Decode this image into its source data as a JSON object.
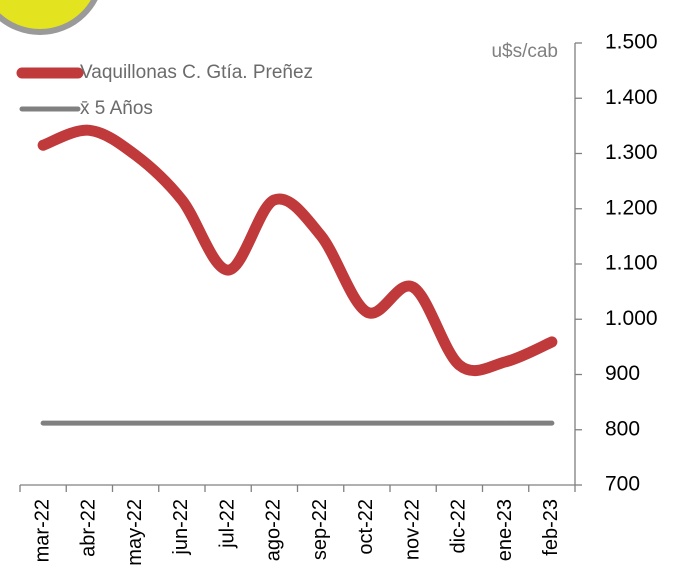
{
  "chart_data": {
    "type": "line",
    "y_axis_label": "u$s/cab",
    "categories": [
      "mar-22",
      "abr-22",
      "may-22",
      "jun-22",
      "jul-22",
      "ago-22",
      "sep-22",
      "oct-22",
      "nov-22",
      "dic-22",
      "ene-23",
      "feb-23"
    ],
    "series": [
      {
        "name": "Vaquillonas C. Gtía. Preñez",
        "color": "#c0393b",
        "values": [
          1315,
          1342,
          1297,
          1216,
          1089,
          1216,
          1152,
          1013,
          1058,
          917,
          923,
          959
        ]
      },
      {
        "name": "x̄ 5 Años",
        "color": "#808080",
        "values": [
          812,
          812,
          812,
          812,
          812,
          812,
          812,
          812,
          812,
          812,
          812,
          812
        ]
      }
    ],
    "ylim": [
      700,
      1500
    ],
    "yticks": [
      700,
      800,
      900,
      {
        "value": 1000,
        "label": "1.000"
      },
      {
        "value": 1100,
        "label": "1.100"
      },
      {
        "value": 1200,
        "label": "1.200"
      },
      {
        "value": 1300,
        "label": "1.300"
      },
      {
        "value": 1400,
        "label": "1.400"
      },
      {
        "value": 1500,
        "label": "1.500"
      }
    ],
    "legend": "top-left"
  }
}
